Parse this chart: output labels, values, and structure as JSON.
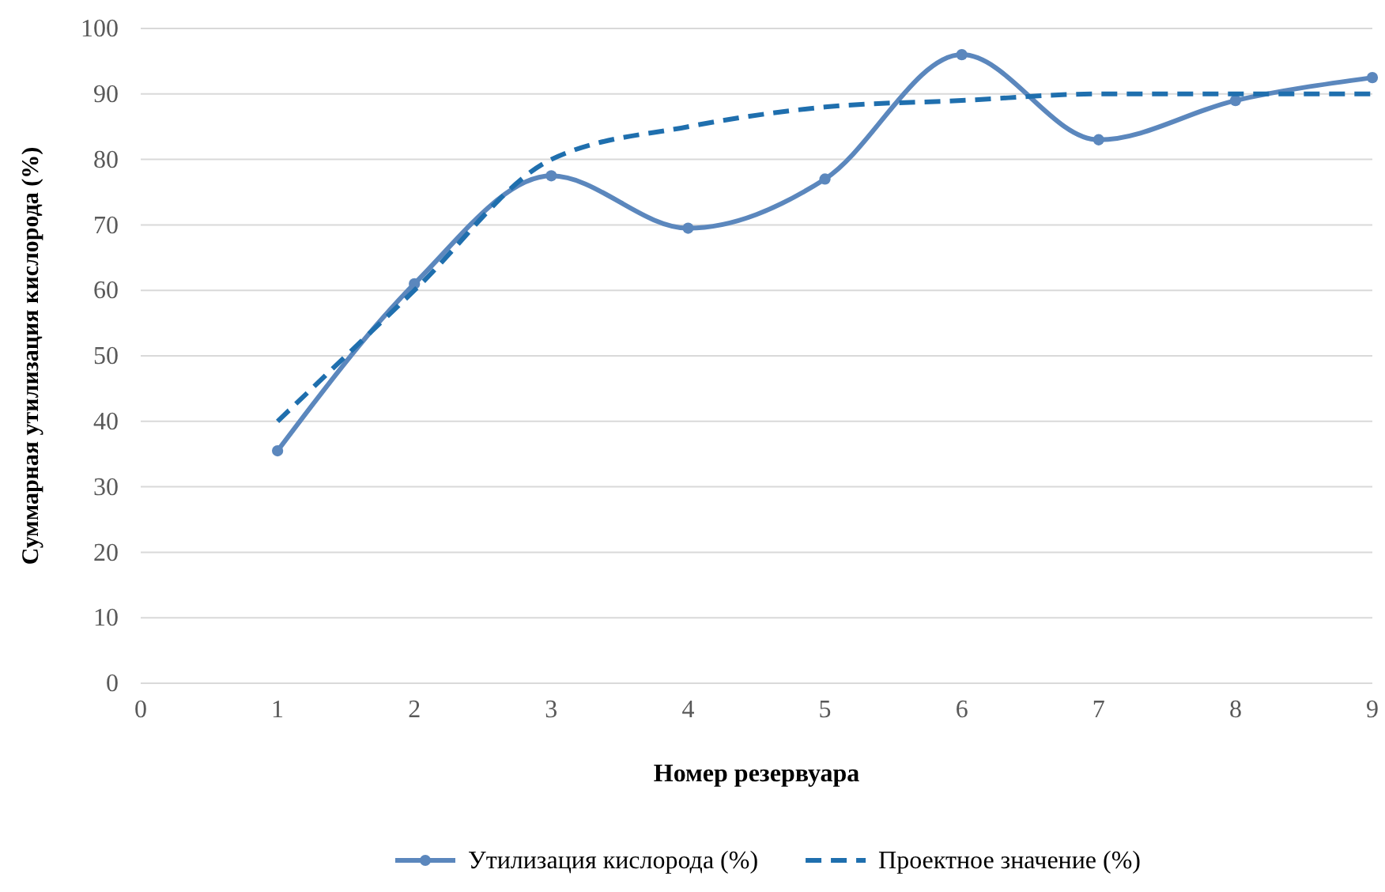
{
  "chart_data": {
    "type": "line",
    "xlabel": "Номер резервуара",
    "ylabel": "Суммарная утилизация кислорода (%)",
    "x": [
      1,
      2,
      3,
      4,
      5,
      6,
      7,
      8,
      9
    ],
    "series": [
      {
        "name": "Утилизация кислорода (%)",
        "color": "#5b87bd",
        "values": [
          35.5,
          61,
          77.5,
          69.5,
          77,
          96,
          83,
          89,
          92.5
        ],
        "marker": "circle",
        "line_style": "solid"
      },
      {
        "name": "Проектное значение (%)",
        "color": "#1f6fae",
        "values": [
          40,
          60,
          80,
          85,
          88,
          89,
          90,
          90,
          90
        ],
        "marker": "none",
        "line_style": "dashed"
      }
    ],
    "xlim": [
      0,
      9
    ],
    "xticks": [
      0,
      1,
      2,
      3,
      4,
      5,
      6,
      7,
      8,
      9
    ],
    "ylim": [
      0,
      100
    ],
    "yticks": [
      0,
      10,
      20,
      30,
      40,
      50,
      60,
      70,
      80,
      90,
      100
    ],
    "grid": "y",
    "legend": "bottom"
  }
}
